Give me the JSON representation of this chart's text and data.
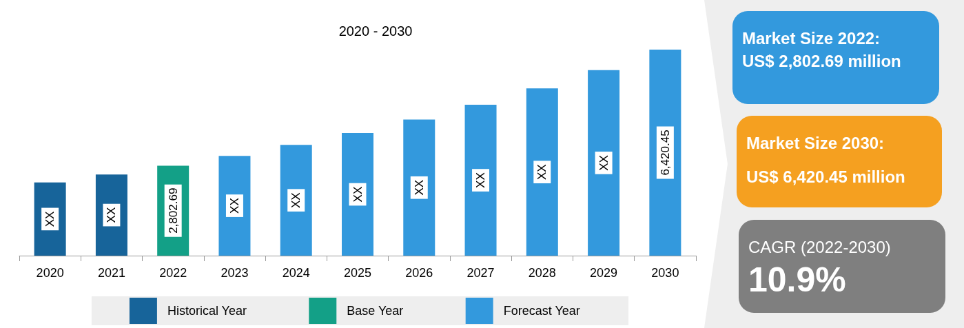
{
  "chart_data": [
    {
      "type": "bar",
      "title": "2020 - 2030",
      "tick_labels": "x",
      "stacked": true,
      "legend": "bottom",
      "grid": false,
      "categories": [
        "2020",
        "2021",
        "2022",
        "2023",
        "2024",
        "2025",
        "2026",
        "2027",
        "2028",
        "2029",
        "2030"
      ],
      "series": [
        {
          "name": "Historical Year",
          "color": "#17649a",
          "values": [
            2280,
            2530,
            null,
            null,
            null,
            null,
            null,
            null,
            null,
            null,
            null
          ],
          "value_labels": [
            "XX",
            "XX",
            null,
            null,
            null,
            null,
            null,
            null,
            null,
            null,
            null
          ]
        },
        {
          "name": "Base Year",
          "color": "#13a087",
          "values": [
            null,
            null,
            2802.69,
            null,
            null,
            null,
            null,
            null,
            null,
            null,
            null
          ],
          "value_labels": [
            null,
            null,
            "2,802.69",
            null,
            null,
            null,
            null,
            null,
            null,
            null,
            null
          ]
        },
        {
          "name": "Forecast Year",
          "color": "#3399dd",
          "values": [
            null,
            null,
            null,
            3110,
            3450,
            3820,
            4240,
            4700,
            5210,
            5780,
            6420.45
          ],
          "value_labels": [
            null,
            null,
            null,
            "XX",
            "XX",
            "XX",
            "XX",
            "XX",
            "XX",
            "XX",
            "6,420.45"
          ]
        }
      ]
    },
    {
      "type": "other",
      "annotations": [
        "Market Size 2022:",
        "US$ 2,802.69 million",
        "Market Size 2030:",
        "US$ 6,420.45 million",
        "CAGR (2022-2030)",
        "10.9%"
      ]
    }
  ]
}
